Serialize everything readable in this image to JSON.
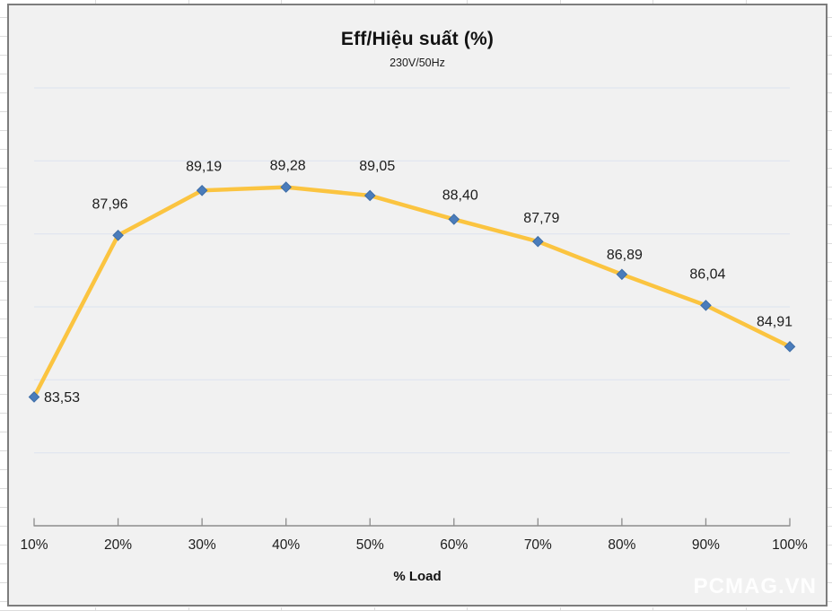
{
  "chart": {
    "title": "Eff/Hiệu suất (%)",
    "subtitle": "230V/50Hz",
    "x_axis_title": "% Load",
    "watermark": "PCMAG.VN"
  },
  "chart_data": {
    "type": "line",
    "title": "Eff/Hiệu suất (%)",
    "subtitle": "230V/50Hz",
    "xlabel": "% Load",
    "ylabel": "",
    "categories": [
      "10%",
      "20%",
      "30%",
      "40%",
      "50%",
      "60%",
      "70%",
      "80%",
      "90%",
      "100%"
    ],
    "series": [
      {
        "name": "Eff/Hiệu suất (%) 230V/50Hz",
        "values": [
          83.53,
          87.96,
          89.19,
          89.28,
          89.05,
          88.4,
          87.79,
          86.89,
          86.04,
          84.91
        ],
        "labels": [
          "83,53",
          "87,96",
          "89,19",
          "89,28",
          "89,05",
          "88,40",
          "87,79",
          "86,89",
          "86,04",
          "84,91"
        ]
      }
    ],
    "ylim": [
      80,
      92
    ],
    "y_grid_step": 2,
    "y_tick_labels_visible": false,
    "grid": true,
    "legend": false,
    "watermark": "PCMAG.VN",
    "colors": {
      "line": "#FBC440",
      "marker_fill": "#4A7CBB",
      "marker_border": "#3E6DA6",
      "gridline": "#DFE5EF",
      "axis": "#8C8C8C",
      "text": "#1C1C1C",
      "plot_background": "#F1F1F1",
      "chart_border": "#7D7D7D",
      "watermark_text": "#FFFFFF"
    }
  }
}
